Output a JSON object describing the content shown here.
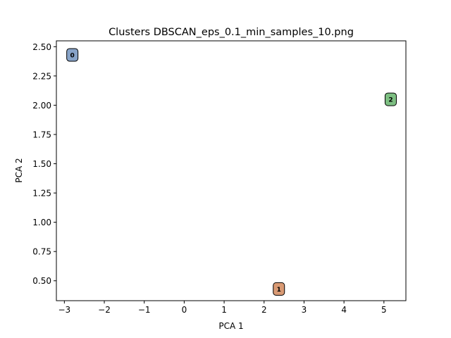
{
  "chart_data": {
    "type": "scatter",
    "title": "Clusters DBSCAN_eps_0.1_min_samples_10.png",
    "xlabel": "PCA 1",
    "ylabel": "PCA 2",
    "xlim": [
      -3.2,
      5.55
    ],
    "ylim": [
      0.33,
      2.55
    ],
    "x_ticks": [
      -3,
      -2,
      -1,
      0,
      1,
      2,
      3,
      4,
      5
    ],
    "x_tick_labels": [
      "−3",
      "−2",
      "−1",
      "0",
      "1",
      "2",
      "3",
      "4",
      "5"
    ],
    "y_ticks": [
      0.5,
      0.75,
      1.0,
      1.25,
      1.5,
      1.75,
      2.0,
      2.25,
      2.5
    ],
    "y_tick_labels": [
      "0.50",
      "0.75",
      "1.00",
      "1.25",
      "1.50",
      "1.75",
      "2.00",
      "2.25",
      "2.50"
    ],
    "grid": false,
    "legend": "none",
    "points": [
      {
        "label": "0",
        "x": -2.8,
        "y": 2.43,
        "color": "#87a3c8"
      },
      {
        "label": "1",
        "x": 2.37,
        "y": 0.43,
        "color": "#d99a74"
      },
      {
        "label": "2",
        "x": 5.17,
        "y": 2.05,
        "color": "#7dbf82"
      }
    ]
  }
}
